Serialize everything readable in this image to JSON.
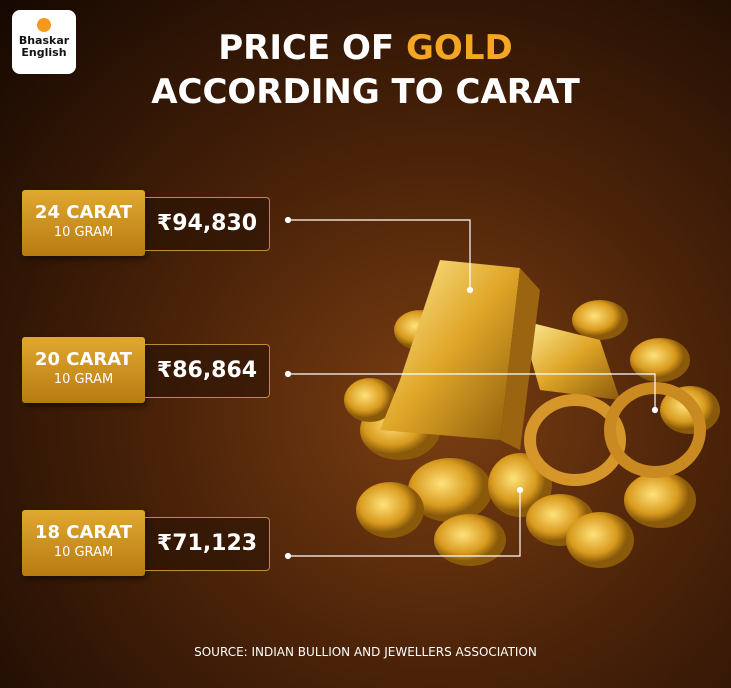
{
  "logo": {
    "line1": "Bhaskar",
    "line2": "English"
  },
  "title": {
    "prefix": "PRICE OF",
    "highlight": "GOLD",
    "line2": "ACCORDING TO CARAT"
  },
  "items": [
    {
      "carat": "24 CARAT",
      "unit": "10 GRAM",
      "price": "₹94,830"
    },
    {
      "carat": "20 CARAT",
      "unit": "10 GRAM",
      "price": "₹86,864"
    },
    {
      "carat": "18 CARAT",
      "unit": "10 GRAM",
      "price": "₹71,123"
    }
  ],
  "source": "SOURCE: INDIAN BULLION AND JEWELLERS ASSOCIATION"
}
